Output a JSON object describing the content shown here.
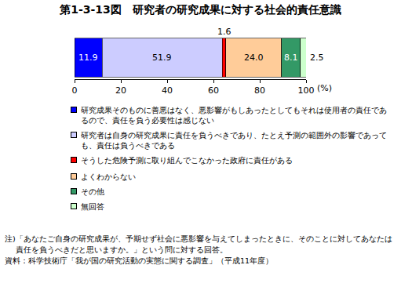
{
  "chart_data": {
    "type": "bar",
    "orientation": "horizontal",
    "stacked": true,
    "title": "第1-3-13図　研究者の研究成果に対する社会的責任意識",
    "xlabel": "(%)",
    "categories": [
      null
    ],
    "xlim": [
      0,
      100
    ],
    "xticks": [
      0,
      20,
      40,
      60,
      80,
      100
    ],
    "grid": false,
    "tick_labels": "x",
    "data_labels": true,
    "legend": "bottom",
    "series": [
      {
        "name": "研究成果そのものに善悪はなく、悪影響がもしあったとしてもそれは使用者の責任であるので、責任を負う必要性は感じない",
        "color": "#0000ff",
        "values": [
          11.9
        ]
      },
      {
        "name": "研究者は自身の研究成果に責任を負うべきであり、たとえ予測の範囲外の影響であっても、責任は負うべきである",
        "color": "#ccccff",
        "values": [
          51.9
        ]
      },
      {
        "name": "そうした危険予測に取り組んでこなかった政府に責任がある",
        "color": "#ff0000",
        "values": [
          1.6
        ]
      },
      {
        "name": "よくわからない",
        "color": "#ffcc99",
        "values": [
          24.0
        ],
        "value_labels": [
          "24.0"
        ]
      },
      {
        "name": "その他",
        "color": "#339966",
        "values": [
          8.1
        ]
      },
      {
        "name": "無回答",
        "color": "#ccffcc",
        "values": [
          2.5
        ]
      }
    ],
    "note": "注)「あなたご自身の研究成果が、予期せず社会に悪影響を与えてしまったときに、そのことに対してあなたは責任を負うべきだと思いますか。」という問に対する回答。",
    "source": "資料：科学技術庁「我が国の研究活動の実態に関する調査」（平成11年度）"
  }
}
